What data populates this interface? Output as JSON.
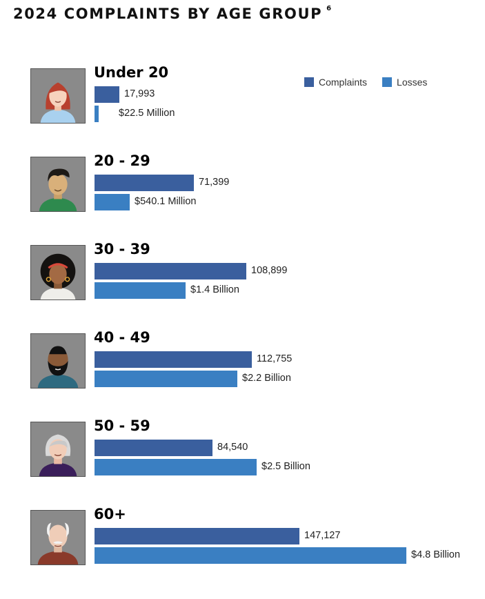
{
  "title": "2024 COMPLAINTS BY AGE GROUP",
  "footnote": "6",
  "colors": {
    "complaints": "#3a5f9e",
    "losses": "#3a7fc2",
    "avatar_bg": "#8a8a8a"
  },
  "chart_data": {
    "type": "bar",
    "orientation": "horizontal",
    "title": "2024 COMPLAINTS BY AGE GROUP",
    "legend": [
      "Complaints",
      "Losses"
    ],
    "legend_position": "top-right",
    "categories": [
      "Under 20",
      "20 - 29",
      "30 - 39",
      "40 - 49",
      "50 - 59",
      "60+"
    ],
    "series": [
      {
        "name": "Complaints",
        "values": [
          17993,
          71399,
          108899,
          112755,
          84540,
          147127
        ],
        "labels": [
          "17,993",
          "71,399",
          "108,899",
          "112,755",
          "84,540",
          "147,127"
        ]
      },
      {
        "name": "Losses",
        "values": [
          22500000,
          540100000,
          1400000000,
          2200000000,
          2500000000,
          4800000000
        ],
        "labels": [
          "$22.5 Million",
          "$540.1 Million",
          "$1.4 Billion",
          "$2.2 Billion",
          "$2.5 Billion",
          "$4.8 Billion"
        ]
      }
    ]
  },
  "groups": [
    {
      "label": "Under 20",
      "icon": "young-woman-icon"
    },
    {
      "label": "20 - 29",
      "icon": "young-man-icon"
    },
    {
      "label": "30 - 39",
      "icon": "woman-headband-icon"
    },
    {
      "label": "40 - 49",
      "icon": "bearded-man-icon"
    },
    {
      "label": "50 - 59",
      "icon": "gray-haired-woman-icon"
    },
    {
      "label": "60+",
      "icon": "elderly-man-icon"
    }
  ]
}
